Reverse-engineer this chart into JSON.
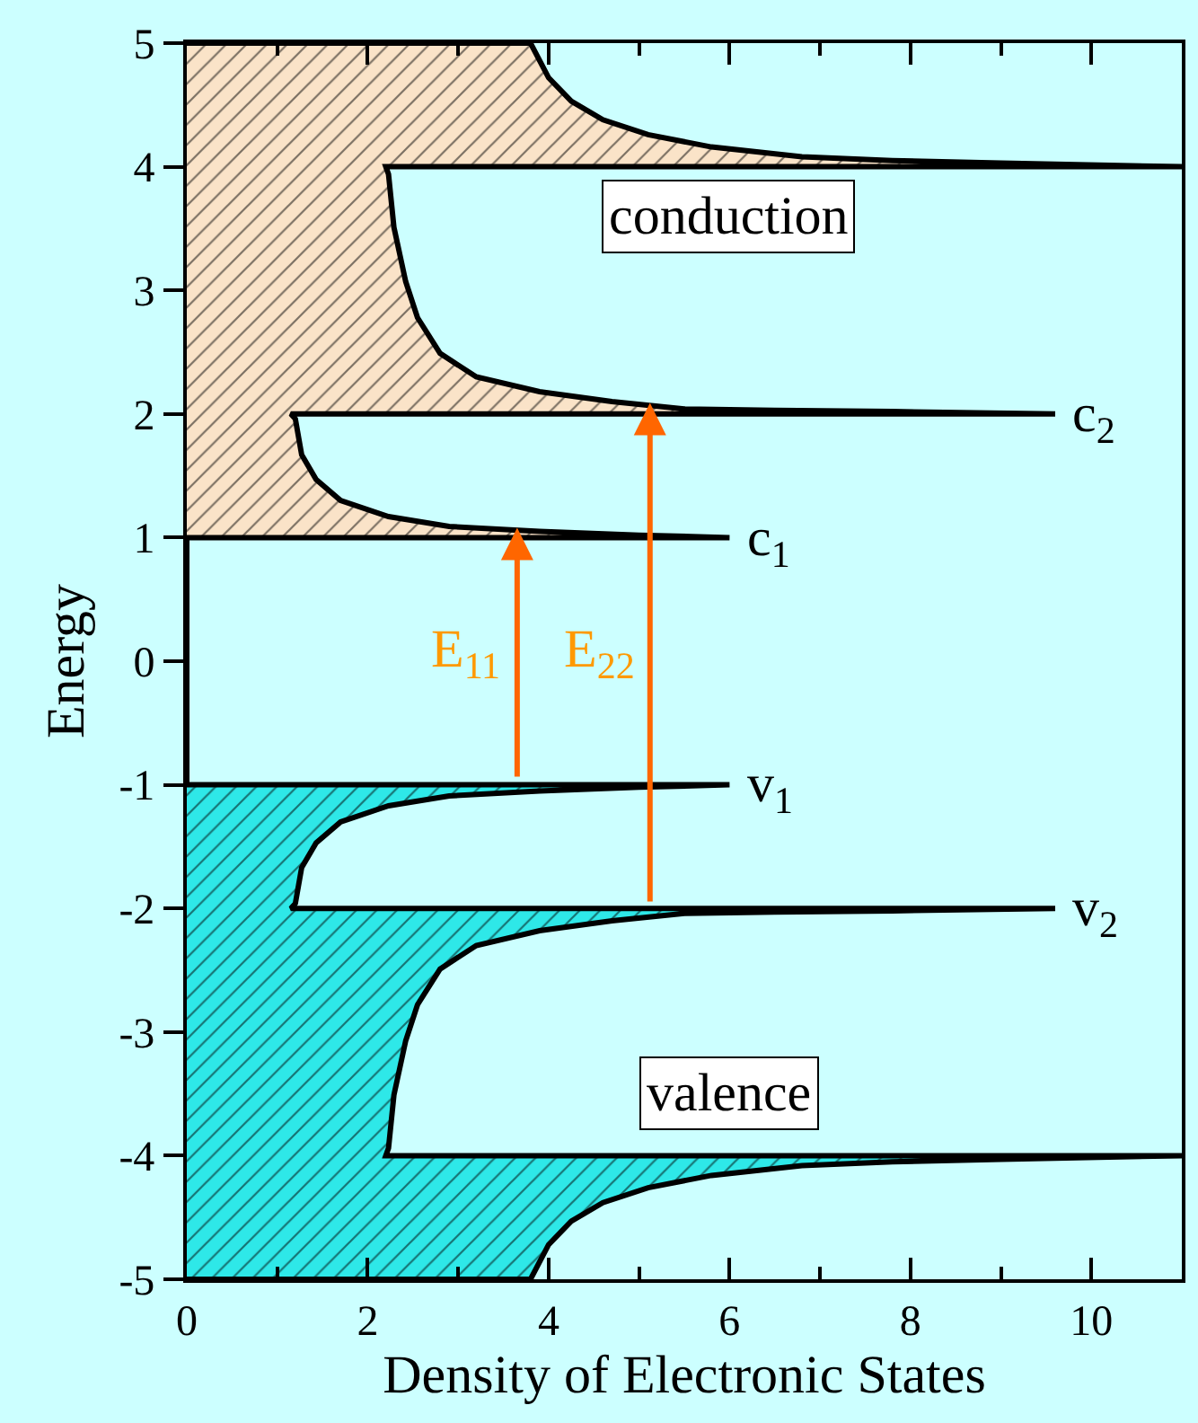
{
  "chart_data": {
    "type": "area",
    "xlabel": "Density of Electronic States",
    "ylabel": "Energy",
    "xlim": [
      0,
      11
    ],
    "ylim": [
      -5,
      5
    ],
    "xticks": [
      0,
      {
        "value": 1,
        "label": null
      },
      2,
      {
        "value": 3,
        "label": null
      },
      4,
      {
        "value": 5,
        "label": null
      },
      6,
      {
        "value": 7,
        "label": null
      },
      8,
      {
        "value": 9,
        "label": null
      },
      10
    ],
    "yticks": [
      -5,
      -4,
      -3,
      -2,
      -1,
      0,
      1,
      2,
      3,
      4,
      5
    ],
    "grid": false,
    "legend": false,
    "marker": "none",
    "line_style": "solid",
    "series": [
      {
        "color": "#2ee8e8",
        "x": [
          0.0,
          3.8,
          4.0,
          4.25,
          4.6,
          5.1,
          5.8,
          6.8,
          7.8,
          9.0,
          11.0,
          2.2,
          2.23,
          2.29,
          2.42,
          2.55,
          2.8,
          3.2,
          3.9,
          4.7,
          5.5,
          6.5,
          7.8,
          9.6,
          1.15,
          1.2,
          1.27,
          1.43,
          1.7,
          2.23,
          2.9,
          3.9,
          5.0,
          6.0,
          0.0
        ],
        "values": [
          -5.0,
          -5.0,
          -4.72,
          -4.53,
          -4.38,
          -4.26,
          -4.16,
          -4.08,
          -4.05,
          -4.03,
          -4.0,
          -4.0,
          -3.94,
          -3.51,
          -3.07,
          -2.78,
          -2.49,
          -2.3,
          -2.18,
          -2.1,
          -2.04,
          -2.03,
          -2.02,
          -2.0,
          -2.0,
          -1.96,
          -1.67,
          -1.47,
          -1.3,
          -1.17,
          -1.09,
          -1.05,
          -1.02,
          -1.0,
          -1.0
        ]
      },
      {
        "type": "line",
        "color": "#000000",
        "x": [
          0.0,
          0.0
        ],
        "values": [
          -1.0,
          1.0
        ]
      },
      {
        "color": "#fae3c8",
        "x": [
          0.0,
          6.0,
          5.0,
          3.9,
          2.9,
          2.23,
          1.7,
          1.43,
          1.27,
          1.2,
          1.15,
          9.6,
          7.8,
          6.5,
          5.5,
          4.7,
          3.9,
          3.2,
          2.8,
          2.55,
          2.42,
          2.29,
          2.23,
          2.2,
          11.0,
          9.0,
          7.8,
          6.8,
          5.8,
          5.1,
          4.6,
          4.25,
          4.0,
          3.8,
          0.0
        ],
        "values": [
          1.0,
          1.0,
          1.02,
          1.05,
          1.09,
          1.17,
          1.3,
          1.47,
          1.67,
          1.96,
          2.0,
          2.0,
          2.02,
          2.03,
          2.04,
          2.1,
          2.18,
          2.3,
          2.49,
          2.78,
          3.07,
          3.51,
          3.94,
          4.0,
          4.0,
          4.03,
          4.05,
          4.08,
          4.16,
          4.26,
          4.38,
          4.53,
          4.72,
          5.0,
          5.0
        ]
      }
    ],
    "annotations": [
      "conduction",
      "valence",
      "E$_{11}$",
      "E$_{22}$",
      "c$_{1}$",
      "c$_{2}$",
      "v$_{1}$",
      "v$_{2}$"
    ]
  }
}
